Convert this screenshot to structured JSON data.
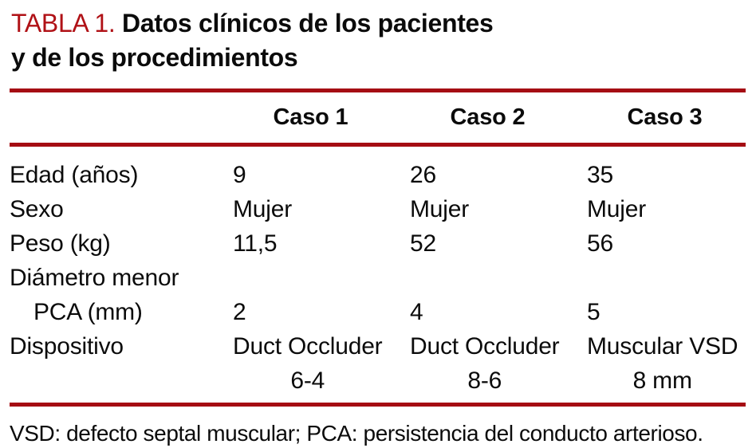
{
  "colors": {
    "title_red": "#b01116",
    "rule_red": "#a50d13",
    "text": "#0b0b0b",
    "background": "#ffffff"
  },
  "title": {
    "label": "TABLA 1.",
    "line1": "Datos clínicos de los pacientes",
    "line2": "y de los procedimientos"
  },
  "table": {
    "header": [
      "Caso 1",
      "Caso 2",
      "Caso 3"
    ],
    "rows": [
      {
        "label_lines": [
          "Edad (años)"
        ],
        "cells": [
          [
            "9"
          ],
          [
            "26"
          ],
          [
            "35"
          ]
        ]
      },
      {
        "label_lines": [
          "Sexo"
        ],
        "cells": [
          [
            "Mujer"
          ],
          [
            "Mujer"
          ],
          [
            "Mujer"
          ]
        ]
      },
      {
        "label_lines": [
          "Peso (kg)"
        ],
        "cells": [
          [
            "11,5"
          ],
          [
            "52"
          ],
          [
            "56"
          ]
        ]
      },
      {
        "label_lines": [
          "Diámetro menor",
          "PCA (mm)"
        ],
        "cells": [
          [
            "2"
          ],
          [
            "4"
          ],
          [
            "5"
          ]
        ]
      },
      {
        "label_lines": [
          "Dispositivo"
        ],
        "cells": [
          [
            "Duct Occluder",
            "6-4"
          ],
          [
            "Duct Occluder",
            "8-6"
          ],
          [
            "Muscular VSD",
            "8 mm"
          ]
        ]
      }
    ]
  },
  "footnote": "VSD: defecto septal muscular; PCA: persistencia del conducto arterioso."
}
